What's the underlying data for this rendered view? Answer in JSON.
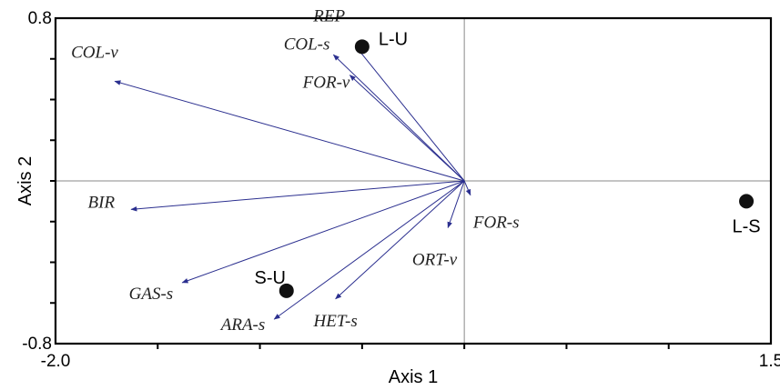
{
  "chart_data": {
    "type": "scatter",
    "title": "",
    "xlabel": "Axis 1",
    "ylabel": "Axis 2",
    "xlim": [
      -2.0,
      1.5
    ],
    "ylim": [
      -0.8,
      0.8
    ],
    "x_tick_labels": [
      "-2.0",
      "1.5"
    ],
    "y_tick_labels": [
      "0.8",
      "-0.8"
    ],
    "x_minor_ticks": [
      -1.5,
      -1.0,
      -0.5,
      0.0,
      0.5,
      1.0
    ],
    "y_minor_ticks": [
      -0.6,
      -0.4,
      -0.2,
      0.0,
      0.2,
      0.4,
      0.6
    ],
    "reference_lines": {
      "x": 0.0,
      "y": 0.0
    },
    "grid": false,
    "vectors": [
      {
        "label": "COL-v",
        "x": -1.71,
        "y": 0.49
      },
      {
        "label": "REP",
        "x": -0.53,
        "y": 0.66
      },
      {
        "label": "COL-s",
        "x": -0.64,
        "y": 0.62
      },
      {
        "label": "FOR-v",
        "x": -0.56,
        "y": 0.52
      },
      {
        "label": "BIR",
        "x": -1.63,
        "y": -0.14
      },
      {
        "label": "GAS-s",
        "x": -1.38,
        "y": -0.5
      },
      {
        "label": "ARA-s",
        "x": -0.93,
        "y": -0.68
      },
      {
        "label": "HET-s",
        "x": -0.63,
        "y": -0.58
      },
      {
        "label": "ORT-v",
        "x": -0.08,
        "y": -0.23
      },
      {
        "label": "FOR-s",
        "x": 0.03,
        "y": -0.07
      }
    ],
    "sites": [
      {
        "label": "L-U",
        "x": -0.5,
        "y": 0.66
      },
      {
        "label": "S-U",
        "x": -0.87,
        "y": -0.54
      },
      {
        "label": "L-S",
        "x": 1.38,
        "y": -0.1
      }
    ],
    "colors": {
      "vector": "#2b2f8f",
      "site": "#111111",
      "axis": "#000000",
      "reference": "#8a8a8a"
    }
  }
}
